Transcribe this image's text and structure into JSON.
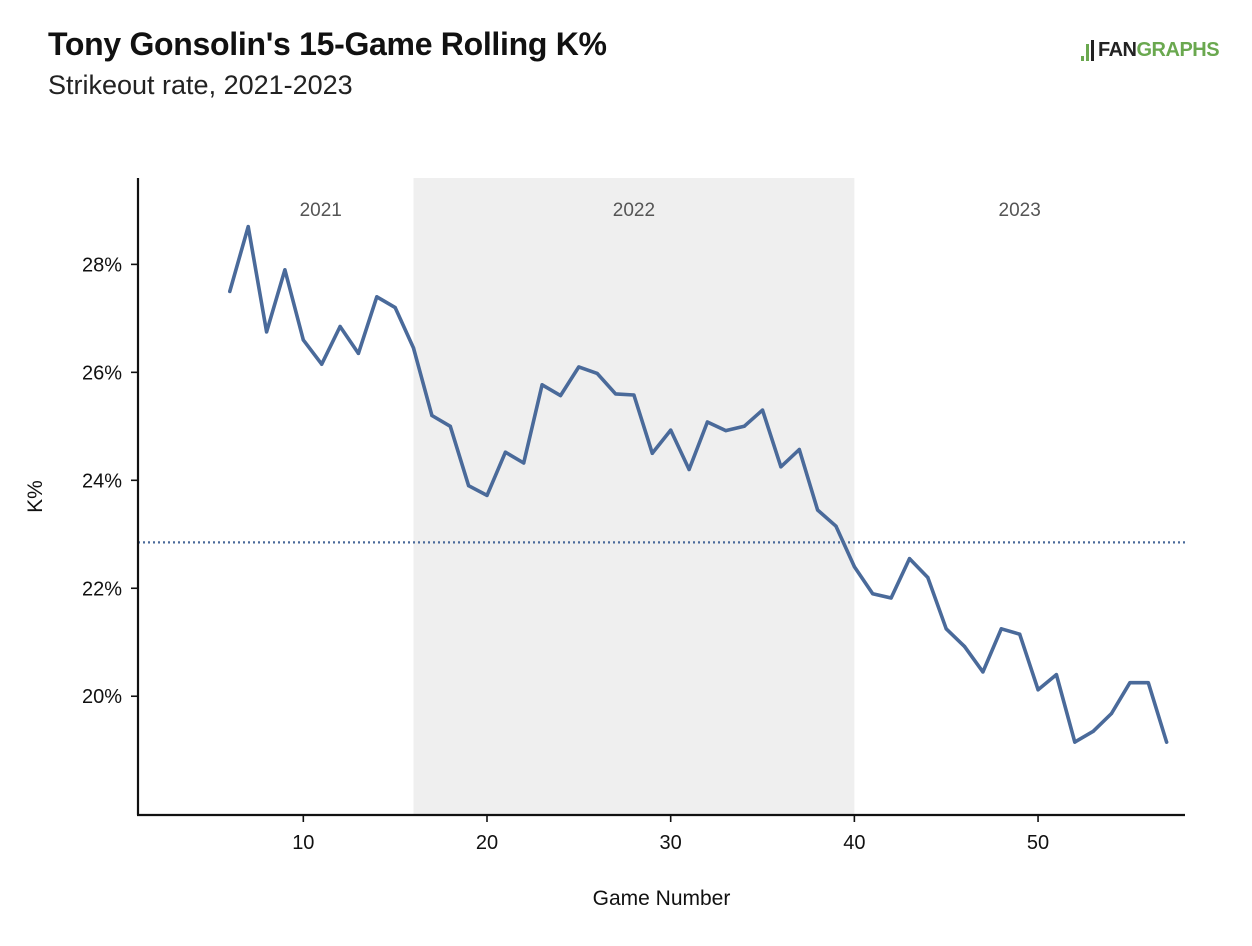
{
  "title": "Tony Gonsolin's 15-Game Rolling K%",
  "subtitle": "Strikeout rate, 2021-2023",
  "logo": {
    "prefix": "FAN",
    "suffix": "GRAPHS"
  },
  "chart_data": {
    "type": "line",
    "xlabel": "Game Number",
    "ylabel": "K%",
    "xlim": [
      1,
      58
    ],
    "ylim": [
      17.8,
      29.6
    ],
    "x_ticks": [
      10,
      20,
      30,
      40,
      50
    ],
    "y_ticks": [
      {
        "value": 20,
        "label": "20%"
      },
      {
        "value": 22,
        "label": "22%"
      },
      {
        "value": 24,
        "label": "24%"
      },
      {
        "value": 26,
        "label": "26%"
      },
      {
        "value": 28,
        "label": "28%"
      }
    ],
    "grid": false,
    "seasons": [
      {
        "label": "2021",
        "start": 1,
        "end": 16,
        "shaded": false
      },
      {
        "label": "2022",
        "start": 16,
        "end": 40,
        "shaded": true
      },
      {
        "label": "2023",
        "start": 40,
        "end": 58,
        "shaded": false
      }
    ],
    "reference_line": {
      "value": 22.85,
      "style": "dotted"
    },
    "series": [
      {
        "color": "#4a6a9a",
        "x": [
          6,
          7,
          8,
          9,
          10,
          11,
          12,
          13,
          14,
          15,
          16,
          17,
          18,
          19,
          20,
          21,
          22,
          23,
          24,
          25,
          26,
          27,
          28,
          29,
          30,
          31,
          32,
          33,
          34,
          35,
          36,
          37,
          38,
          39,
          40,
          41,
          42,
          43,
          44,
          45,
          46,
          47,
          48,
          49,
          50,
          51,
          52,
          53,
          54,
          55,
          56,
          57
        ],
        "values": [
          27.5,
          28.7,
          26.75,
          27.9,
          26.6,
          26.15,
          26.85,
          26.35,
          27.4,
          27.2,
          26.45,
          25.2,
          25.0,
          23.9,
          23.72,
          24.52,
          24.32,
          25.77,
          25.57,
          26.1,
          25.98,
          25.6,
          25.58,
          24.5,
          24.93,
          24.2,
          25.08,
          24.92,
          25.0,
          25.3,
          24.25,
          24.57,
          23.45,
          23.15,
          22.4,
          21.9,
          21.82,
          22.55,
          22.2,
          21.25,
          20.92,
          20.45,
          21.25,
          21.15,
          20.12,
          20.4,
          19.15,
          19.35,
          19.68,
          20.25,
          20.25,
          19.15
        ]
      }
    ]
  }
}
